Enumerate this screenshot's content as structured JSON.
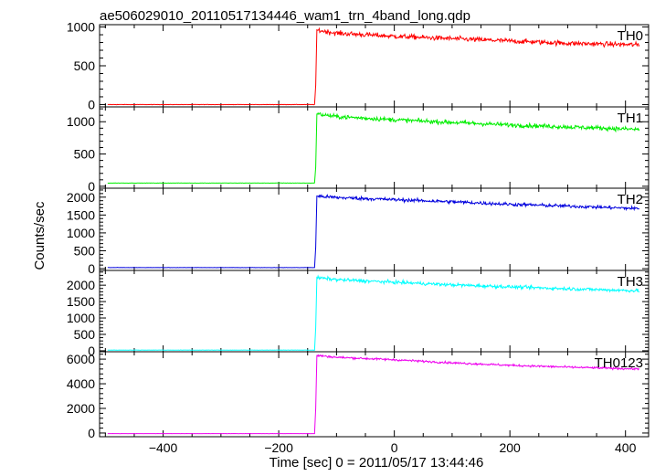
{
  "chart_data": {
    "type": "line",
    "title": "ae506029010_20110517134446_wam1_trn_4band_long.qdp",
    "xlabel": "Time [sec] 0 = 2011/05/17 13:44:46",
    "ylabel": "Counts/sec",
    "xlim": [
      -510,
      440
    ],
    "x_ticks": [
      -400,
      -200,
      0,
      200,
      400
    ],
    "x_tick_labels": [
      "−400",
      "−200",
      "0",
      "200",
      "400"
    ],
    "x_step": 1,
    "x_start": -496,
    "x_end": 424,
    "x_onset": -134,
    "grid": false,
    "legend": "none",
    "panels": [
      {
        "name": "TH0",
        "color": "#ff0000",
        "ylim": [
          -30,
          1030
        ],
        "y_ticks": [
          0,
          500,
          1000
        ],
        "y_tick_labels": [
          "0",
          "500",
          "1000"
        ],
        "baseline": 0,
        "x": [
          -496,
          -138,
          -136,
          -134,
          -100,
          0,
          100,
          200,
          300,
          424
        ],
        "y": [
          0,
          0,
          250,
          960,
          920,
          880,
          850,
          820,
          790,
          770
        ],
        "noise": 30
      },
      {
        "name": "TH1",
        "color": "#00ee00",
        "ylim": [
          -30,
          1230
        ],
        "y_ticks": [
          0,
          500,
          1000
        ],
        "y_tick_labels": [
          "0",
          "500",
          "1000"
        ],
        "baseline": 50,
        "x": [
          -496,
          -138,
          -136,
          -134,
          -100,
          0,
          100,
          200,
          300,
          424
        ],
        "y": [
          50,
          50,
          300,
          1120,
          1080,
          1030,
          990,
          950,
          920,
          880
        ],
        "noise": 32
      },
      {
        "name": "TH2",
        "color": "#0000dd",
        "ylim": [
          -50,
          2250
        ],
        "y_ticks": [
          0,
          500,
          1000,
          1500,
          2000
        ],
        "y_tick_labels": [
          "0",
          "500",
          "1000",
          "1500",
          "2000"
        ],
        "baseline": 30,
        "x": [
          -496,
          -138,
          -136,
          -134,
          -100,
          0,
          100,
          200,
          300,
          424
        ],
        "y": [
          30,
          30,
          600,
          2030,
          1990,
          1930,
          1870,
          1800,
          1750,
          1680
        ],
        "noise": 45
      },
      {
        "name": "TH3",
        "color": "#00ffff",
        "ylim": [
          -30,
          2450
        ],
        "y_ticks": [
          0,
          500,
          1000,
          1500,
          2000
        ],
        "y_tick_labels": [
          "0",
          "500",
          "1000",
          "1500",
          "2000"
        ],
        "baseline": 20,
        "x": [
          -496,
          -138,
          -136,
          -134,
          -100,
          0,
          100,
          200,
          300,
          424
        ],
        "y": [
          20,
          20,
          700,
          2230,
          2170,
          2090,
          2010,
          1950,
          1890,
          1830
        ],
        "noise": 48
      },
      {
        "name": "TH0123",
        "color": "#ee00ee",
        "ylim": [
          -300,
          6600
        ],
        "y_ticks": [
          0,
          2000,
          4000,
          6000
        ],
        "y_tick_labels": [
          "0",
          "2000",
          "4000",
          "6000"
        ],
        "baseline": -50,
        "x": [
          -496,
          -138,
          -136,
          -134,
          -100,
          0,
          100,
          200,
          300,
          424
        ],
        "y": [
          -50,
          -50,
          2000,
          6300,
          6150,
          5950,
          5700,
          5500,
          5350,
          5200
        ],
        "noise": 80
      }
    ]
  }
}
